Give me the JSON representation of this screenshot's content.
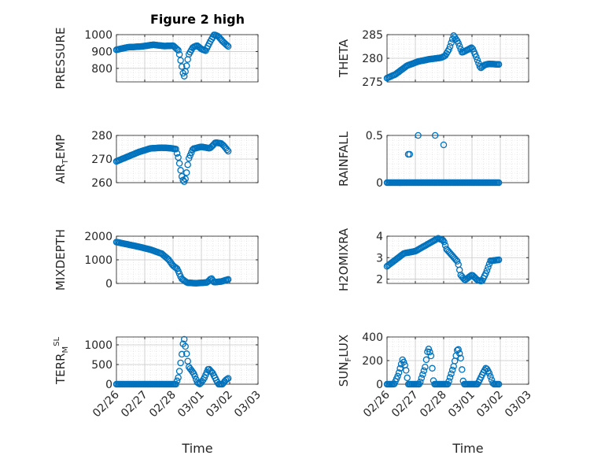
{
  "figure": {
    "title": "Figure 2 high",
    "xlabel": "Time",
    "marker_color": "#0072BD",
    "grid_color": "#d9d9d9",
    "axis_color": "#262626"
  },
  "chart_data": [
    {
      "type": "scatter",
      "ylabel": "PRESSURE",
      "ylim": [
        720,
        1000
      ],
      "yticks": [
        800,
        900,
        1000
      ],
      "xlim": [
        0,
        5
      ],
      "xtick_labels": [
        "02/26",
        "02/27",
        "02/28",
        "03/01",
        "03/02",
        "03/03"
      ],
      "knots": [
        [
          0,
          910
        ],
        [
          0.4,
          925
        ],
        [
          0.9,
          930
        ],
        [
          1.3,
          940
        ],
        [
          1.7,
          932
        ],
        [
          2.0,
          935
        ],
        [
          2.2,
          905
        ],
        [
          2.3,
          820
        ],
        [
          2.38,
          745
        ],
        [
          2.45,
          790
        ],
        [
          2.55,
          880
        ],
        [
          2.7,
          925
        ],
        [
          2.85,
          935
        ],
        [
          3.0,
          915
        ],
        [
          3.15,
          905
        ],
        [
          3.3,
          955
        ],
        [
          3.45,
          1000
        ],
        [
          3.6,
          990
        ],
        [
          3.75,
          960
        ],
        [
          3.95,
          930
        ]
      ],
      "series": [
        {
          "x0": 0,
          "x1": 3.95,
          "step": 0.042
        }
      ]
    },
    {
      "type": "scatter",
      "ylabel": "THETA",
      "ylim": [
        275,
        285
      ],
      "yticks": [
        275,
        280,
        285
      ],
      "xlim": [
        0,
        5
      ],
      "xtick_labels": [
        "02/26",
        "02/27",
        "02/28",
        "03/01",
        "03/02",
        "03/03"
      ],
      "knots": [
        [
          0,
          275.8
        ],
        [
          0.3,
          276.6
        ],
        [
          0.7,
          278.4
        ],
        [
          1.1,
          279.3
        ],
        [
          1.5,
          279.8
        ],
        [
          1.9,
          280.1
        ],
        [
          2.05,
          280.5
        ],
        [
          2.2,
          282
        ],
        [
          2.35,
          284.8
        ],
        [
          2.5,
          283.5
        ],
        [
          2.65,
          281.2
        ],
        [
          2.85,
          281.8
        ],
        [
          3.0,
          282.3
        ],
        [
          3.15,
          280.3
        ],
        [
          3.3,
          277.9
        ],
        [
          3.45,
          278.6
        ],
        [
          3.6,
          278.8
        ],
        [
          3.95,
          278.7
        ]
      ],
      "series": [
        {
          "x0": 0,
          "x1": 3.95,
          "step": 0.042
        }
      ]
    },
    {
      "type": "scatter",
      "ylabel": "AIR",
      "ylabel_sub": "T",
      "ylabel_tail": "EMP",
      "ylim": [
        260,
        280
      ],
      "yticks": [
        260,
        270,
        280
      ],
      "xlim": [
        0,
        5
      ],
      "xtick_labels": [
        "02/26",
        "02/27",
        "02/28",
        "03/01",
        "03/02",
        "03/03"
      ],
      "knots": [
        [
          0,
          269
        ],
        [
          0.4,
          271
        ],
        [
          0.8,
          273
        ],
        [
          1.2,
          274.5
        ],
        [
          1.6,
          274.8
        ],
        [
          1.9,
          274.6
        ],
        [
          2.1,
          274.2
        ],
        [
          2.2,
          270
        ],
        [
          2.3,
          263
        ],
        [
          2.38,
          260
        ],
        [
          2.45,
          262
        ],
        [
          2.55,
          270
        ],
        [
          2.7,
          274.3
        ],
        [
          3.0,
          275.2
        ],
        [
          3.3,
          274.5
        ],
        [
          3.5,
          277
        ],
        [
          3.7,
          276.6
        ],
        [
          3.8,
          275.5
        ],
        [
          3.95,
          273.3
        ]
      ],
      "series": [
        {
          "x0": 0,
          "x1": 3.95,
          "step": 0.042
        }
      ]
    },
    {
      "type": "scatter",
      "ylabel": "RAINFALL",
      "ylim": [
        0,
        0.5
      ],
      "yticks": [
        0,
        0.5
      ],
      "xlim": [
        0,
        5
      ],
      "xtick_labels": [
        "02/26",
        "02/27",
        "02/28",
        "03/01",
        "03/02",
        "03/03"
      ],
      "knots": [
        [
          0,
          0
        ],
        [
          3.95,
          0
        ]
      ],
      "spikes": [
        [
          0.75,
          0.3
        ],
        [
          0.8,
          0.3
        ],
        [
          1.1,
          0.5
        ],
        [
          1.7,
          0.5
        ],
        [
          2.0,
          0.4
        ]
      ],
      "series": [
        {
          "x0": 0,
          "x1": 3.95,
          "step": 0.042
        }
      ]
    },
    {
      "type": "scatter",
      "ylabel": "MIXDEPTH",
      "ylim": [
        0,
        2000
      ],
      "yticks": [
        0,
        1000,
        2000
      ],
      "xlim": [
        0,
        5
      ],
      "xtick_labels": [
        "02/26",
        "02/27",
        "02/28",
        "03/01",
        "03/02",
        "03/03"
      ],
      "knots": [
        [
          0,
          1750
        ],
        [
          0.4,
          1650
        ],
        [
          0.8,
          1550
        ],
        [
          1.2,
          1430
        ],
        [
          1.6,
          1260
        ],
        [
          1.85,
          1000
        ],
        [
          2.0,
          750
        ],
        [
          2.15,
          620
        ],
        [
          2.3,
          200
        ],
        [
          2.5,
          30
        ],
        [
          2.8,
          10
        ],
        [
          3.2,
          40
        ],
        [
          3.35,
          220
        ],
        [
          3.45,
          50
        ],
        [
          3.7,
          80
        ],
        [
          3.95,
          170
        ]
      ],
      "series": [
        {
          "x0": 0,
          "x1": 3.95,
          "step": 0.042
        }
      ]
    },
    {
      "type": "scatter",
      "ylabel": "H2OMIXRA",
      "ylim": [
        1.8,
        4
      ],
      "yticks": [
        2,
        3,
        4
      ],
      "xlim": [
        0,
        5
      ],
      "xtick_labels": [
        "02/26",
        "02/27",
        "02/28",
        "03/01",
        "03/02",
        "03/03"
      ],
      "knots": [
        [
          0,
          2.6
        ],
        [
          0.3,
          2.9
        ],
        [
          0.6,
          3.2
        ],
        [
          1.0,
          3.3
        ],
        [
          1.4,
          3.6
        ],
        [
          1.8,
          3.9
        ],
        [
          2.0,
          3.8
        ],
        [
          2.1,
          3.4
        ],
        [
          2.3,
          3.1
        ],
        [
          2.5,
          2.8
        ],
        [
          2.6,
          2.2
        ],
        [
          2.75,
          1.95
        ],
        [
          3.0,
          2.2
        ],
        [
          3.2,
          1.95
        ],
        [
          3.35,
          1.9
        ],
        [
          3.5,
          2.3
        ],
        [
          3.65,
          2.85
        ],
        [
          3.95,
          2.9
        ]
      ],
      "series": [
        {
          "x0": 0,
          "x1": 3.95,
          "step": 0.042
        }
      ]
    },
    {
      "type": "scatter",
      "ylabel": "TERR",
      "ylabel_sub": "M",
      "ylabel_sup": "SL",
      "ylim": [
        0,
        1200
      ],
      "yticks": [
        0,
        500,
        1000
      ],
      "xlim": [
        0,
        5
      ],
      "xtick_labels": [
        "02/26",
        "02/27",
        "02/28",
        "03/01",
        "03/02",
        "03/03"
      ],
      "knots": [
        [
          0,
          0
        ],
        [
          2.1,
          0
        ],
        [
          2.2,
          200
        ],
        [
          2.3,
          700
        ],
        [
          2.38,
          1200
        ],
        [
          2.45,
          900
        ],
        [
          2.55,
          450
        ],
        [
          2.75,
          250
        ],
        [
          2.85,
          50
        ],
        [
          2.95,
          0
        ],
        [
          3.1,
          150
        ],
        [
          3.25,
          400
        ],
        [
          3.4,
          280
        ],
        [
          3.6,
          0
        ],
        [
          3.75,
          0
        ],
        [
          3.85,
          100
        ],
        [
          3.95,
          150
        ]
      ],
      "series": [
        {
          "x0": 0,
          "x1": 3.95,
          "step": 0.042
        }
      ]
    },
    {
      "type": "scatter",
      "ylabel": "SUN",
      "ylabel_sub": "F",
      "ylabel_tail": "LUX",
      "ylim": [
        0,
        400
      ],
      "yticks": [
        0,
        200,
        400
      ],
      "xlim": [
        0,
        5
      ],
      "xtick_labels": [
        "02/26",
        "02/27",
        "02/28",
        "03/01",
        "03/02",
        "03/03"
      ],
      "knots": [
        [
          0,
          0
        ],
        [
          0.25,
          0
        ],
        [
          0.4,
          80
        ],
        [
          0.55,
          210
        ],
        [
          0.65,
          150
        ],
        [
          0.75,
          0
        ],
        [
          1.15,
          0
        ],
        [
          1.35,
          150
        ],
        [
          1.45,
          310
        ],
        [
          1.55,
          250
        ],
        [
          1.65,
          0
        ],
        [
          2.15,
          0
        ],
        [
          2.35,
          150
        ],
        [
          2.5,
          310
        ],
        [
          2.6,
          230
        ],
        [
          2.7,
          0
        ],
        [
          3.2,
          0
        ],
        [
          3.4,
          100
        ],
        [
          3.5,
          140
        ],
        [
          3.6,
          100
        ],
        [
          3.75,
          0
        ],
        [
          3.95,
          0
        ]
      ],
      "series": [
        {
          "x0": 0,
          "x1": 3.95,
          "step": 0.042
        }
      ]
    }
  ]
}
